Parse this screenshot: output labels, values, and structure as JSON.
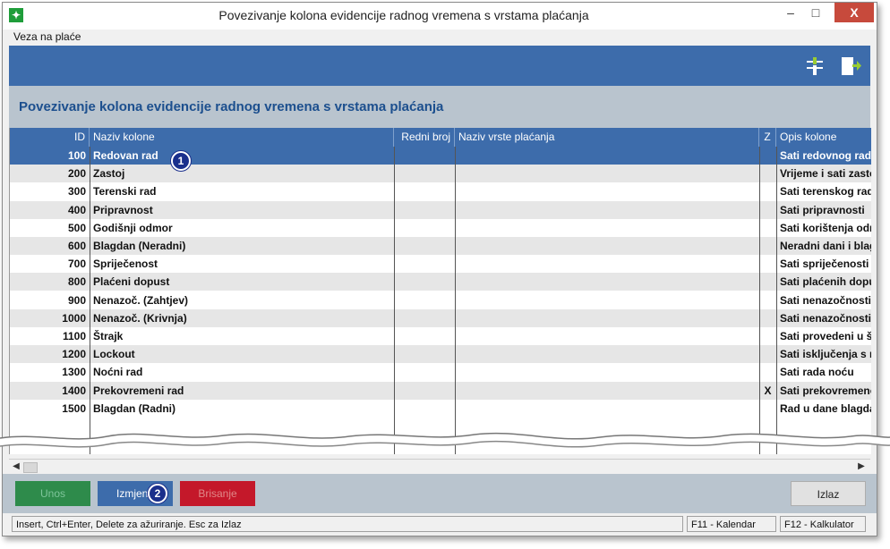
{
  "window": {
    "title": "Povezivanje kolona evidencije radnog vremena s vrstama plaćanja",
    "min_glyph": "–",
    "max_glyph": "□",
    "close_glyph": "X"
  },
  "menu": {
    "items": [
      "Veza na plaće"
    ]
  },
  "toolbar": {
    "icons": [
      "settings-icon",
      "exit-icon"
    ]
  },
  "page": {
    "title": "Povezivanje kolona evidencije radnog vremena s vrstama plaćanja"
  },
  "table": {
    "columns": [
      "ID",
      "Naziv kolone",
      "Redni broj",
      "Naziv vrste plaćanja",
      "Z",
      "Opis kolone"
    ],
    "rows": [
      {
        "id": "100",
        "naziv": "Redovan rad",
        "redni": "",
        "vrsta": "",
        "z": "",
        "opis": "Sati redovnog rada",
        "selected": true
      },
      {
        "id": "200",
        "naziv": "Zastoj",
        "redni": "",
        "vrsta": "",
        "z": "",
        "opis": "Vrijeme i sati zastoj"
      },
      {
        "id": "300",
        "naziv": "Terenski rad",
        "redni": "",
        "vrsta": "",
        "z": "",
        "opis": "Sati terenskog rada"
      },
      {
        "id": "400",
        "naziv": "Pripravnost",
        "redni": "",
        "vrsta": "",
        "z": "",
        "opis": "Sati pripravnosti"
      },
      {
        "id": "500",
        "naziv": "Godišnji odmor",
        "redni": "",
        "vrsta": "",
        "z": "",
        "opis": "Sati korištenja odm"
      },
      {
        "id": "600",
        "naziv": "Blagdan (Neradni)",
        "redni": "",
        "vrsta": "",
        "z": "",
        "opis": "Neradni dani i blagd"
      },
      {
        "id": "700",
        "naziv": "Spriječenost",
        "redni": "",
        "vrsta": "",
        "z": "",
        "opis": "Sati spriječenosti za"
      },
      {
        "id": "800",
        "naziv": "Plaćeni dopust",
        "redni": "",
        "vrsta": "",
        "z": "",
        "opis": "Sati plaćenih dopus"
      },
      {
        "id": "900",
        "naziv": "Nenazoč. (Zahtjev)",
        "redni": "",
        "vrsta": "",
        "z": "",
        "opis": "Sati nenazočnosti u"
      },
      {
        "id": "1000",
        "naziv": "Nenazoč. (Krivnja)",
        "redni": "",
        "vrsta": "",
        "z": "",
        "opis": "Sati nenazočnosti u"
      },
      {
        "id": "1100",
        "naziv": "Štrajk",
        "redni": "",
        "vrsta": "",
        "z": "",
        "opis": "Sati provedeni u štr"
      },
      {
        "id": "1200",
        "naziv": "Lockout",
        "redni": "",
        "vrsta": "",
        "z": "",
        "opis": "Sati isključenja s ra"
      },
      {
        "id": "1300",
        "naziv": "Noćni rad",
        "redni": "",
        "vrsta": "",
        "z": "",
        "opis": "Sati rada noću"
      },
      {
        "id": "1400",
        "naziv": "Prekovremeni rad",
        "redni": "",
        "vrsta": "",
        "z": "X",
        "opis": "Sati prekovremenog"
      },
      {
        "id": "1500",
        "naziv": "Blagdan (Radni)",
        "redni": "",
        "vrsta": "",
        "z": "",
        "opis": "Rad u dane blagdan"
      }
    ]
  },
  "callouts": [
    "1",
    "2"
  ],
  "buttons": {
    "unos": "Unos",
    "izmjena": "Izmjena",
    "brisanje": "Brisanje",
    "izlaz": "Izlaz"
  },
  "status": {
    "hint": "Insert, Ctrl+Enter, Delete za ažuriranje. Esc za Izlaz",
    "kalendar": "F11 - Kalendar",
    "kalkulator": "F12 - Kalkulator"
  },
  "colors": {
    "toolbar": "#3d6cab",
    "header_band": "#b9c4ce",
    "title_text": "#1c4f8e",
    "row_alt": "#e6e6e6",
    "row_selected": "#3d6cab",
    "btn_unos": "#2e8b4b",
    "btn_izmjena": "#3d6cab",
    "btn_brisanje": "#c4182a",
    "close_button": "#c74a3c"
  }
}
